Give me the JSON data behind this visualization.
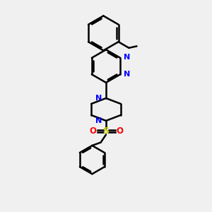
{
  "background_color": "#f0f0f0",
  "bond_color": "#000000",
  "bond_width": 1.8,
  "N_color": "#0000ff",
  "S_color": "#cccc00",
  "O_color": "#ff0000",
  "figsize": [
    3.0,
    3.0
  ],
  "dpi": 100,
  "xlim": [
    0,
    10
  ],
  "ylim": [
    0,
    12
  ]
}
